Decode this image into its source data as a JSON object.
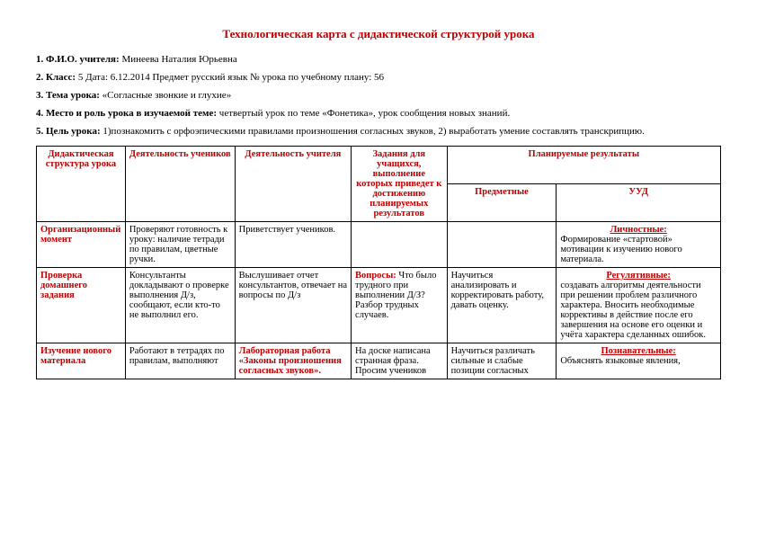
{
  "title": "Технологическая карта с дидактической структурой урока",
  "meta": {
    "l1_b": "1. Ф.И.О. учителя:",
    "l1": " Минеева  Наталия  Юрьевна",
    "l2_b": "2. Класс:",
    "l2a": " 5  Дата: 6.12.2014  Предмет  русский  язык  № урока по учебному плану:  56",
    "l3_b": "3. Тема урока:",
    "l3": "  «Согласные звонкие и глухие»",
    "l4_b": "4. Место и роль урока в изучаемой теме:",
    "l4": " четвертый урок по теме «Фонетика», урок сообщения новых знаний.",
    "l5_b": "5. Цель урока:",
    "l5": "  1)познакомить с орфоэпическими правилами произношения согласных звуков, 2) выработать умение составлять транскрипцию."
  },
  "headers": {
    "h1": "Дидактическая структура урока",
    "h2": "Деятельность учеников",
    "h3": "Деятельность учителя",
    "h4": "Задания для учащихся, выполнение которых приведет к достижению планируемых результатов",
    "h5": "Планируемые результаты",
    "h5a": "Предметные",
    "h5b": "УУД"
  },
  "rows": {
    "r1": {
      "c1": "Организационный момент",
      "c2": "Проверяют готовность к уроку: наличие тетради по правилам, цветные ручки.",
      "c3": "Приветствует учеников.",
      "c4": "",
      "c5": "",
      "c6_t": "Личностные:",
      "c6": "Формирование «стартовой» мотивации к изучению нового материала."
    },
    "r2": {
      "c1": "Проверка домашнего задания",
      "c2": "Консультанты докладывают о проверке выполнения Д/з, сообщают, если кто-то не выполнил его.",
      "c3": "Выслушивает отчет консультантов, отвечает на вопросы по Д/з",
      "c4_b": "Вопросы:",
      "c4": " Что было трудного при выполнении Д/З? Разбор трудных случаев.",
      "c5": "Научиться анализировать и корректировать работу, давать оценку.",
      "c6_t": "Регулятивные:",
      "c6": "создавать алгоритмы деятельности при решении проблем различного характера. Вносить необходимые коррективы в действие после его завершения на основе его оценки и учёта характера сделанных ошибок."
    },
    "r3": {
      "c1": "Изучение нового материала",
      "c2": "Работают в  тетрадях по правилам, выполняют",
      "c3a": "Лабораторная работа",
      "c3b": "«Законы произношения согласных звуков».",
      "c4": "На доске написана странная фраза. Просим учеников",
      "c5": "Научиться различать сильные и слабые позиции согласных",
      "c6_t": "Познавательные:",
      "c6": "Объяснять языковые явления,"
    }
  }
}
